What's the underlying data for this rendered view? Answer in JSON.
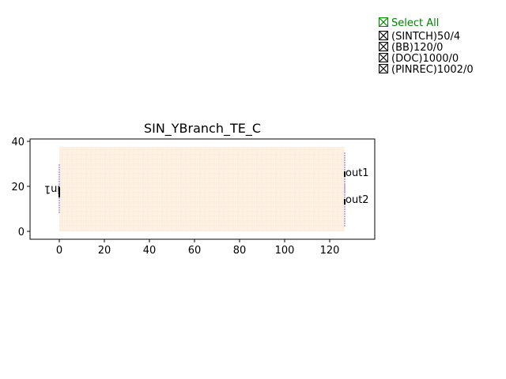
{
  "plot": {
    "title": "SIN_YBranch_TE_C",
    "x_ticks": [
      "0",
      "20",
      "40",
      "60",
      "80",
      "100",
      "120"
    ],
    "y_ticks": [
      "0",
      "20",
      "40"
    ],
    "ports": {
      "in": "in1",
      "out1": "out1",
      "out2": "out2"
    },
    "colors": {
      "device_fill": "#fdf1e4",
      "device_grid": "#f5d9bc",
      "port_line": "#7a6fd6",
      "axis": "#000000"
    }
  },
  "legend": {
    "select_all": {
      "label": "Select All",
      "color": "#008000",
      "checked": true
    },
    "layers": [
      {
        "label": "(SINTCH)50/4",
        "checked": true
      },
      {
        "label": "(BB)120/0",
        "checked": true
      },
      {
        "label": "(DOC)1000/0",
        "checked": true
      },
      {
        "label": "(PINREC)1002/0",
        "checked": true
      }
    ]
  }
}
